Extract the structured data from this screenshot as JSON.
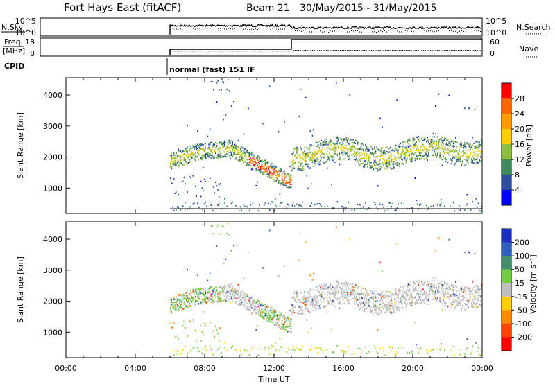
{
  "header": {
    "station": "Fort Hays East (fitACF)",
    "beam_label": "Beam 21",
    "date_range": "30/May/2015 - 31/May/2015"
  },
  "status_panels": {
    "nsky_label": "N.Sky",
    "nsky_ticks": [
      "10^5",
      "10^0"
    ],
    "nsearch_label": "N.Search",
    "nsearch_ticks": [
      "10^5",
      "10^0"
    ],
    "freq_label_1": "Freq.",
    "freq_label_2": "[MHz]",
    "freq_ticks": [
      "18",
      "8"
    ],
    "nave_label": "Nave",
    "nave_ticks": [
      "60",
      "0"
    ],
    "cpid_label": "CPID",
    "cpid_text": "normal (fast) 151 IF"
  },
  "chart_data": [
    {
      "type": "heatmap",
      "name": "power",
      "ylabel": "Slant Range [km]",
      "yticks": [
        "4000",
        "3000",
        "2000",
        "1000"
      ],
      "ytick_values": [
        4000,
        3000,
        2000,
        1000
      ],
      "ylim": [
        180,
        4560
      ],
      "xlim": [
        0,
        24
      ],
      "colorbar_label": "Power [dB]",
      "colorbar_ticks": [
        "28",
        "24",
        "20",
        "16",
        "12",
        "8",
        "4"
      ],
      "colorbar_colors": [
        "#ff0000",
        "#ff6600",
        "#ff9900",
        "#ffcc00",
        "#8fbf3f",
        "#3c8a5c",
        "#2a4ea0",
        "#0000ff"
      ],
      "data_start_hour": 6
    },
    {
      "type": "heatmap",
      "name": "velocity",
      "ylabel": "Slant Range [km]",
      "yticks": [
        "4000",
        "3000",
        "2000",
        "1000"
      ],
      "ytick_values": [
        4000,
        3000,
        2000,
        1000
      ],
      "ylim": [
        180,
        4560
      ],
      "xlim": [
        0,
        24
      ],
      "colorbar_label": "Velocity [m s⁻¹]",
      "colorbar_ticks": [
        "200",
        "100",
        "50",
        "15",
        "-15",
        "-50",
        "-100",
        "-200"
      ],
      "colorbar_colors": [
        "#1a2fbf",
        "#2f5fbf",
        "#3f8f6f",
        "#6fcf3f",
        "#bebebe",
        "#ffcc00",
        "#ff8800",
        "#ff4400",
        "#ff0000"
      ],
      "xticks": [
        "00:00",
        "04:00",
        "08:00",
        "12:00",
        "16:00",
        "20:00",
        "00:00"
      ],
      "xtick_hours": [
        0,
        4,
        8,
        12,
        16,
        20,
        24
      ],
      "xlabel": "Time UT"
    }
  ]
}
